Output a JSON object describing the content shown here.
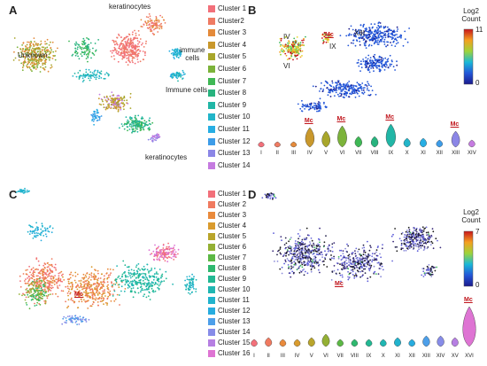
{
  "panels": {
    "A": {
      "label": "A",
      "legend": [
        "Cluster 1",
        "Cluster2",
        "Cluster 3",
        "Cluster 4",
        "Cluster 5",
        "Cluster 6",
        "Cluster 7",
        "Cluster 8",
        "Cluster 9",
        "Cluster 10",
        "Cluster 11",
        "Cluster 12",
        "Cluster 13",
        "Cluster 14"
      ],
      "annotations": {
        "keratinocytes_top": "keratinocytes",
        "unknown": "Unknown",
        "immune_cells_1": "immune\ncells",
        "immune_cells_2": "Immune cells",
        "keratinocytes_bottom": "keratinocytes"
      }
    },
    "B": {
      "label": "B",
      "colorbar": {
        "title": "Log2\nCount",
        "max": "11",
        "min": "0"
      },
      "cluster_labels": {
        "iv": "IV",
        "vi": "VI",
        "ix": "IX",
        "xiii": "XIII",
        "mc": "Mc"
      },
      "violin_ticks": [
        "I",
        "II",
        "III",
        "IV",
        "V",
        "VI",
        "VII",
        "VIII",
        "IX",
        "X",
        "XI",
        "XII",
        "XIII",
        "XIV"
      ],
      "violin_mc": "Mc"
    },
    "C": {
      "label": "C",
      "legend": [
        "Cluster 1",
        "Cluster 2",
        "Cluster 3",
        "Cluster 4",
        "Cluster 5",
        "Cluster 6",
        "Cluster 7",
        "Cluster 8",
        "Cluster 9",
        "Cluster 10",
        "Cluster 11",
        "Cluster 12",
        "Cluster 13",
        "Cluster 14",
        "Cluster 15",
        "Cluster 16"
      ],
      "mc": "Mc"
    },
    "D": {
      "label": "D",
      "colorbar": {
        "title": "Log2\nCount",
        "max": "7",
        "min": "0"
      },
      "mc": "Mc",
      "violin_ticks": [
        "I",
        "II",
        "III",
        "IV",
        "V",
        "VI",
        "VII",
        "VIII",
        "IX",
        "X",
        "XI",
        "XII",
        "XIII",
        "XIV",
        "XV",
        "XVI"
      ],
      "violin_mc": "Mc"
    }
  },
  "colors": {
    "clusters14": [
      "#f2707a",
      "#ef7b63",
      "#e48a3a",
      "#c9982c",
      "#a8a62b",
      "#7cb33a",
      "#3fb855",
      "#27b37e",
      "#21b6a6",
      "#22b5c9",
      "#27aee3",
      "#3d9ce8",
      "#8b86e6",
      "#c57be0"
    ],
    "clusters16": [
      "#f2707a",
      "#f07a60",
      "#e98a3c",
      "#d99b2e",
      "#b9a52b",
      "#94b034",
      "#5cb845",
      "#2fb86f",
      "#22b893",
      "#20b6b2",
      "#21b3cd",
      "#27acdf",
      "#4d9fe9",
      "#878ce8",
      "#b67fe2",
      "#de74d3"
    ]
  }
}
